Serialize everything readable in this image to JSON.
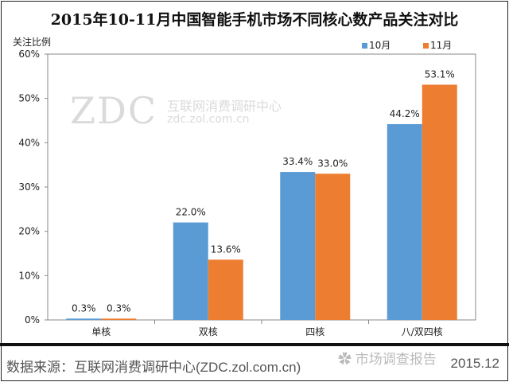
{
  "chart_data": {
    "type": "bar",
    "title": "2015年10-11月中国智能手机市场不同核心数产品关注对比",
    "ylabel": "关注比例",
    "xlabel": "",
    "categories": [
      "单核",
      "双核",
      "四核",
      "八/双四核"
    ],
    "series": [
      {
        "name": "10月",
        "color": "#5B9BD5",
        "values": [
          0.3,
          22.0,
          33.4,
          44.2
        ],
        "labels": [
          "0.3%",
          "22.0%",
          "33.4%",
          "44.2%"
        ]
      },
      {
        "name": "11月",
        "color": "#ED7D31",
        "values": [
          0.3,
          13.6,
          33.0,
          53.1
        ],
        "labels": [
          "0.3%",
          "13.6%",
          "33.0%",
          "53.1%"
        ]
      }
    ],
    "ylim": [
      0,
      60
    ],
    "yticks": [
      0,
      10,
      20,
      30,
      40,
      50,
      60
    ],
    "ytick_labels": [
      "0%",
      "10%",
      "20%",
      "30%",
      "40%",
      "50%",
      "60%"
    ],
    "grid": false,
    "legend_position": "top-right"
  },
  "footer": {
    "source": "数据来源：互联网消费调研中心(ZDC.zol.com.cn)",
    "date": "2015.12",
    "wechat_watermark": "市场调查报告"
  },
  "watermark": {
    "logo": "ZDC",
    "line1": "互联网消费调研中心",
    "line2": "zdc.zol.com.cn"
  }
}
